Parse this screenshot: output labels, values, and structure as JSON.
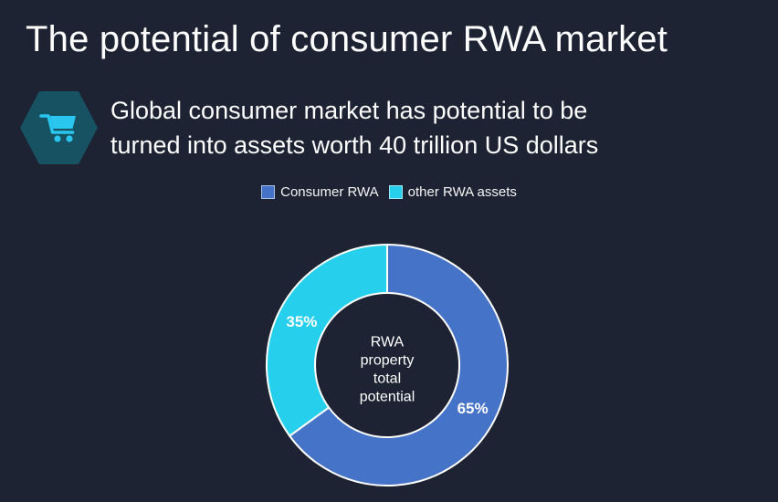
{
  "slide": {
    "title": "The potential of consumer RWA market",
    "subtitle_line1": "Global consumer market has potential to be",
    "subtitle_line2": "turned into assets worth 40 trillion US dollars"
  },
  "colors": {
    "background": "#1d2333",
    "title_text": "#ffffff",
    "hexagon_fill": "#175263",
    "cart_icon": "#29c6f0",
    "slice_border": "#ffffff",
    "consumer_rwa_blue": "#4573c7",
    "other_rwa_cyan": "#26d0ec"
  },
  "chart_data": {
    "type": "pie",
    "subtype": "donut",
    "title": "",
    "center_label_lines": [
      "RWA",
      "property",
      "total",
      "potential"
    ],
    "series": [
      {
        "name": "Consumer RWA",
        "value": 65,
        "label": "65%",
        "color": "#4573c7"
      },
      {
        "name": "other RWA assets",
        "value": 35,
        "label": "35%",
        "color": "#26d0ec"
      }
    ],
    "start_angle_deg": 0,
    "direction": "clockwise",
    "data_labels": "percent",
    "legend_position": "top"
  }
}
